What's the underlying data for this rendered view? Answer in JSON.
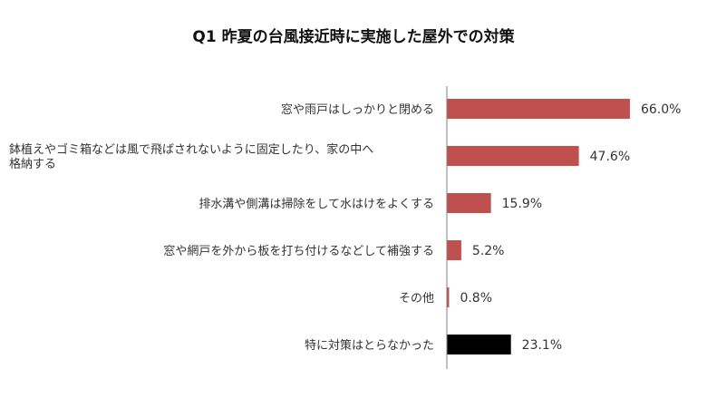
{
  "chart_data": {
    "type": "bar",
    "orientation": "horizontal",
    "title": "Q1 昨夏の台風接近時に実施した屋外での対策",
    "categories": [
      [
        "窓や雨戸はしっかりと閉める"
      ],
      [
        "鉢植えやゴミ箱などは風で飛ばされないように固定したり、家の中へ",
        "格納する"
      ],
      [
        "排水溝や側溝は掃除をして水はけをよくする"
      ],
      [
        "窓や網戸を外から板を打ち付けるなどして補強する"
      ],
      [
        "その他"
      ],
      [
        "特に対策はとらなかった"
      ]
    ],
    "values": [
      66.0,
      47.6,
      15.9,
      5.2,
      0.8,
      23.1
    ],
    "value_labels": [
      "66.0%",
      "47.6%",
      "15.9%",
      "5.2%",
      "0.8%",
      "23.1%"
    ],
    "bar_colors": [
      "#c0504d",
      "#c0504d",
      "#c0504d",
      "#c0504d",
      "#c0504d",
      "#000000"
    ],
    "xlim": [
      0,
      100
    ],
    "grid": false,
    "legend": "none"
  }
}
